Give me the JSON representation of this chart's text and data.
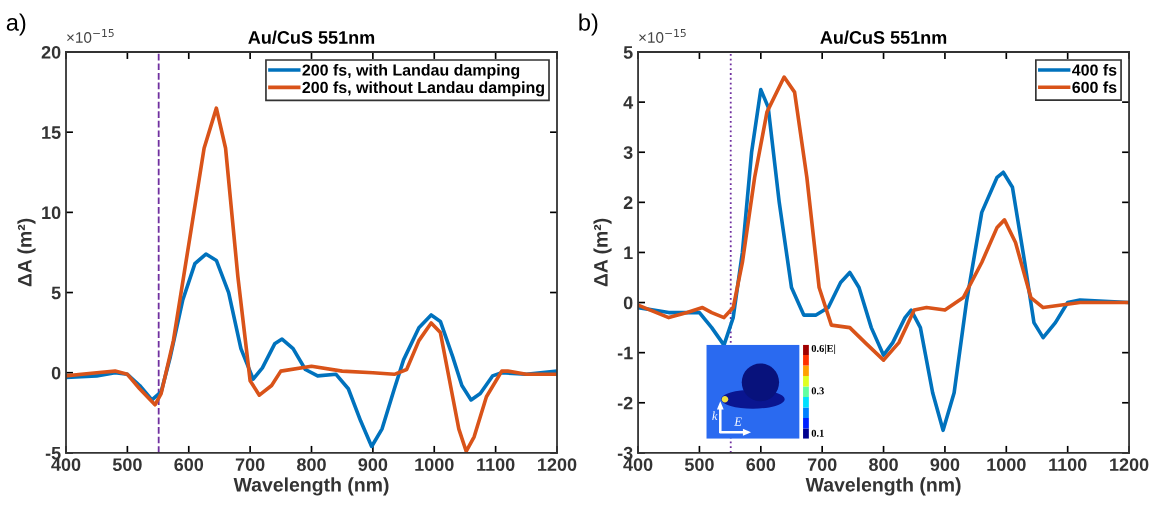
{
  "chart_data": [
    {
      "type": "line",
      "title": "Au/CuS 551nm",
      "xlabel": "Wavelength (nm)",
      "ylabel": "ΔA (m²)",
      "xlim": [
        400,
        1200
      ],
      "xticks": [
        400,
        500,
        600,
        700,
        800,
        900,
        1000,
        1100,
        1200
      ],
      "ylim": [
        -5,
        20
      ],
      "yticks": [
        -5,
        0,
        5,
        10,
        15,
        20
      ],
      "grid": false,
      "legend": "top right",
      "line_style": "solid",
      "annotations": [
        "a)",
        "×10$^{−15}$"
      ],
      "ref_lines": [
        {
          "axis": "x",
          "value": 551,
          "color": "#7030a0",
          "line_style": "dashed"
        }
      ],
      "series": [
        {
          "name": "200 fs, with Landau damping",
          "color": "#0072bd",
          "x": [
            400,
            450,
            480,
            500,
            520,
            540,
            555,
            570,
            590,
            610,
            628,
            645,
            665,
            685,
            705,
            720,
            740,
            752,
            770,
            790,
            810,
            840,
            860,
            880,
            898,
            915,
            935,
            950,
            975,
            995,
            1010,
            1030,
            1045,
            1060,
            1075,
            1095,
            1110,
            1150,
            1200
          ],
          "values": [
            -0.3,
            -0.2,
            0,
            -0.1,
            -0.8,
            -1.7,
            -1.2,
            1,
            4.5,
            6.8,
            7.4,
            7,
            5,
            1.5,
            -0.4,
            0.3,
            1.8,
            2.1,
            1.5,
            0.2,
            -0.2,
            -0.1,
            -1,
            -3,
            -4.6,
            -3.5,
            -1,
            0.8,
            2.8,
            3.6,
            3.2,
            1,
            -0.8,
            -1.7,
            -1.3,
            -0.2,
            0,
            -0.1,
            0.1
          ]
        },
        {
          "name": "200 fs, without Landau damping",
          "color": "#d95319",
          "x": [
            400,
            450,
            480,
            500,
            520,
            545,
            555,
            575,
            600,
            625,
            645,
            660,
            680,
            700,
            715,
            735,
            750,
            800,
            850,
            900,
            935,
            955,
            975,
            995,
            1010,
            1025,
            1040,
            1052,
            1065,
            1085,
            1110,
            1120,
            1150,
            1200
          ],
          "values": [
            -0.2,
            0,
            0.1,
            -0.1,
            -1,
            -2,
            -1.3,
            2,
            8,
            14,
            16.5,
            14,
            6,
            -0.5,
            -1.4,
            -0.8,
            0.1,
            0.4,
            0.1,
            0,
            -0.1,
            0.2,
            2,
            3.1,
            2.5,
            -0.5,
            -3.5,
            -4.9,
            -4,
            -1.5,
            0.1,
            0.1,
            -0.1,
            -0.1
          ]
        }
      ]
    },
    {
      "type": "line",
      "title": "Au/CuS 551nm",
      "xlabel": "Wavelength (nm)",
      "ylabel": "ΔA (m²)",
      "xlim": [
        400,
        1200
      ],
      "xticks": [
        400,
        500,
        600,
        700,
        800,
        900,
        1000,
        1100,
        1200
      ],
      "ylim": [
        -3,
        5
      ],
      "yticks": [
        -3,
        -2,
        -1,
        0,
        1,
        2,
        3,
        4,
        5
      ],
      "grid": false,
      "legend": "top right",
      "line_style": "solid",
      "annotations": [
        "b)",
        "×10$^{−15}$",
        "0.6|E|",
        "0.3",
        "0.1",
        "k",
        "E"
      ],
      "ref_lines": [
        {
          "axis": "x",
          "value": 551,
          "color": "#7030a0",
          "line_style": "dotted"
        }
      ],
      "series": [
        {
          "name": "400 fs",
          "color": "#0072bd",
          "x": [
            400,
            450,
            500,
            520,
            540,
            555,
            570,
            585,
            600,
            612,
            630,
            650,
            670,
            690,
            710,
            730,
            745,
            760,
            780,
            800,
            815,
            835,
            845,
            860,
            880,
            897,
            915,
            935,
            960,
            985,
            995,
            1010,
            1030,
            1045,
            1060,
            1080,
            1100,
            1120,
            1200
          ],
          "values": [
            -0.1,
            -0.2,
            -0.2,
            -0.5,
            -0.85,
            -0.3,
            1,
            3,
            4.25,
            3.9,
            2,
            0.3,
            -0.25,
            -0.25,
            -0.1,
            0.4,
            0.6,
            0.3,
            -0.5,
            -1.05,
            -0.8,
            -0.3,
            -0.15,
            -0.5,
            -1.8,
            -2.55,
            -1.8,
            0,
            1.8,
            2.5,
            2.6,
            2.3,
            0.8,
            -0.4,
            -0.7,
            -0.4,
            0,
            0.05,
            0
          ]
        },
        {
          "name": "600 fs",
          "color": "#d95319",
          "x": [
            400,
            450,
            480,
            505,
            520,
            540,
            555,
            570,
            590,
            610,
            638,
            655,
            675,
            695,
            715,
            745,
            770,
            800,
            825,
            850,
            870,
            900,
            930,
            960,
            985,
            997,
            1015,
            1040,
            1060,
            1090,
            1120,
            1200
          ],
          "values": [
            -0.05,
            -0.3,
            -0.2,
            -0.1,
            -0.2,
            -0.3,
            -0.1,
            0.8,
            2.5,
            3.8,
            4.5,
            4.2,
            2.5,
            0.3,
            -0.45,
            -0.5,
            -0.8,
            -1.15,
            -0.8,
            -0.15,
            -0.1,
            -0.15,
            0.1,
            0.8,
            1.5,
            1.65,
            1.2,
            0.1,
            -0.1,
            -0.05,
            0,
            0
          ]
        }
      ]
    }
  ]
}
